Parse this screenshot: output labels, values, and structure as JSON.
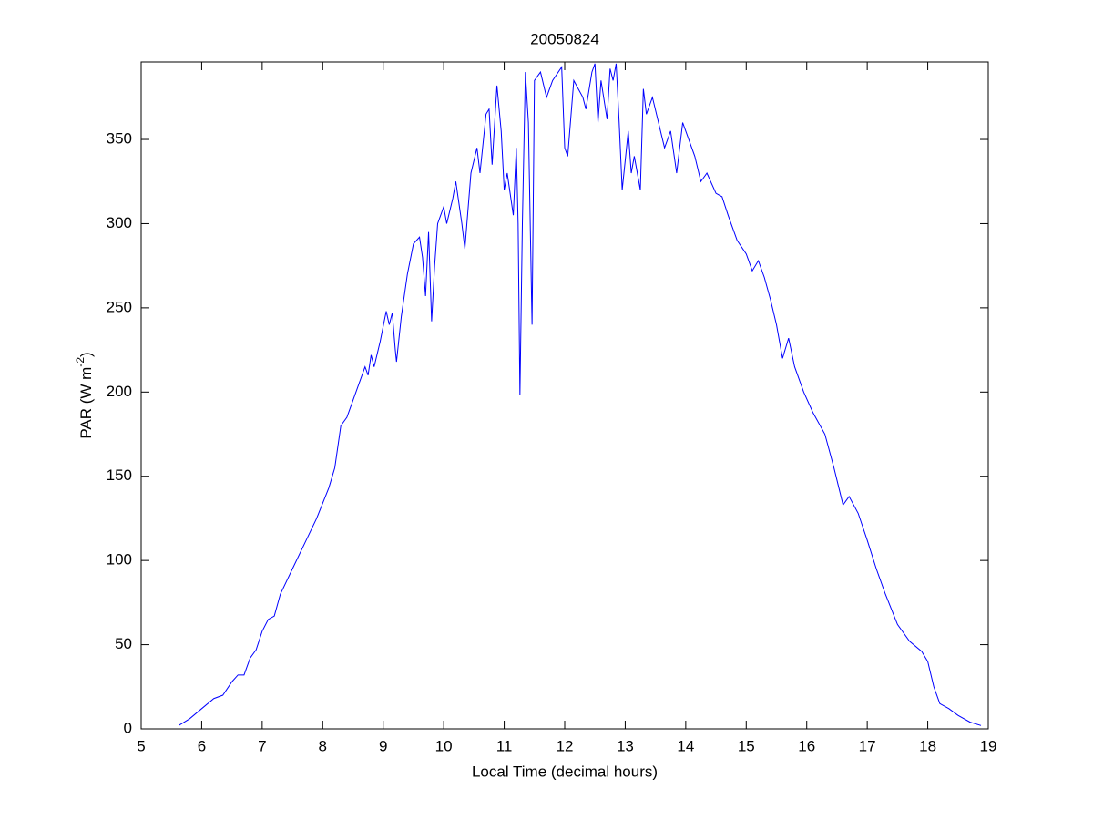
{
  "chart_data": {
    "type": "line",
    "title": "20050824",
    "x_label": "Local Time (decimal hours)",
    "y_label": [
      "PAR (W m",
      "-2",
      ")"
    ],
    "color": "#0000ff",
    "xlim": [
      5,
      19
    ],
    "xticks": [
      5,
      6,
      7,
      8,
      9,
      10,
      11,
      12,
      13,
      14,
      15,
      16,
      17,
      18,
      19
    ],
    "ylim": [
      0,
      396
    ],
    "yticks": [
      0,
      50,
      100,
      150,
      200,
      250,
      300,
      350
    ],
    "x": [
      5.62,
      5.8,
      6.0,
      6.2,
      6.35,
      6.5,
      6.6,
      6.7,
      6.8,
      6.9,
      7.0,
      7.1,
      7.2,
      7.3,
      7.5,
      7.7,
      7.9,
      8.1,
      8.2,
      8.3,
      8.4,
      8.5,
      8.6,
      8.7,
      8.75,
      8.8,
      8.85,
      8.95,
      9.05,
      9.1,
      9.15,
      9.2,
      9.22,
      9.3,
      9.4,
      9.5,
      9.6,
      9.65,
      9.7,
      9.75,
      9.8,
      9.85,
      9.9,
      10.0,
      10.05,
      10.15,
      10.2,
      10.3,
      10.35,
      10.45,
      10.55,
      10.6,
      10.7,
      10.75,
      10.8,
      10.88,
      10.95,
      11.0,
      11.05,
      11.15,
      11.2,
      11.23,
      11.26,
      11.3,
      11.35,
      11.4,
      11.43,
      11.46,
      11.5,
      11.6,
      11.7,
      11.8,
      11.95,
      12.0,
      12.05,
      12.15,
      12.3,
      12.35,
      12.45,
      12.5,
      12.55,
      12.6,
      12.7,
      12.75,
      12.8,
      12.85,
      12.9,
      12.95,
      13.05,
      13.1,
      13.15,
      13.25,
      13.3,
      13.35,
      13.45,
      13.55,
      13.65,
      13.75,
      13.85,
      13.95,
      14.05,
      14.15,
      14.25,
      14.35,
      14.5,
      14.6,
      14.7,
      14.85,
      15.0,
      15.1,
      15.2,
      15.3,
      15.4,
      15.5,
      15.6,
      15.7,
      15.8,
      15.95,
      16.1,
      16.3,
      16.45,
      16.6,
      16.7,
      16.85,
      17.0,
      17.15,
      17.3,
      17.5,
      17.7,
      17.9,
      18.0,
      18.1,
      18.2,
      18.35,
      18.5,
      18.7,
      18.88
    ],
    "values": [
      2,
      6,
      12,
      18,
      20,
      28,
      32,
      32,
      42,
      47,
      58,
      65,
      67,
      80,
      95,
      110,
      125,
      143,
      155,
      180,
      185,
      195,
      205,
      215,
      210,
      222,
      215,
      230,
      248,
      240,
      247,
      225,
      218,
      245,
      270,
      288,
      292,
      280,
      257,
      295,
      242,
      275,
      300,
      310,
      300,
      315,
      325,
      300,
      285,
      330,
      345,
      330,
      365,
      368,
      335,
      382,
      355,
      320,
      330,
      305,
      345,
      300,
      198,
      300,
      390,
      360,
      300,
      240,
      385,
      390,
      375,
      385,
      393,
      345,
      340,
      385,
      375,
      368,
      390,
      395,
      360,
      385,
      362,
      392,
      385,
      395,
      360,
      320,
      355,
      330,
      340,
      320,
      380,
      365,
      375,
      360,
      345,
      355,
      330,
      360,
      350,
      340,
      325,
      330,
      318,
      316,
      305,
      290,
      282,
      272,
      278,
      268,
      255,
      240,
      220,
      232,
      215,
      200,
      188,
      175,
      155,
      133,
      138,
      128,
      112,
      95,
      80,
      62,
      52,
      46,
      40,
      25,
      15,
      12,
      8,
      4,
      2
    ]
  }
}
